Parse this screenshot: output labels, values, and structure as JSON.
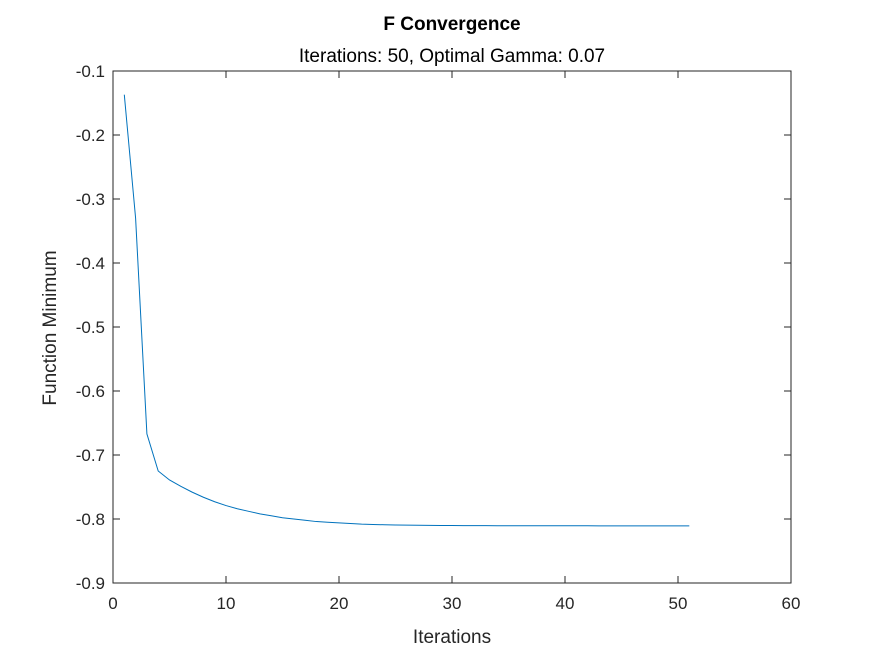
{
  "chart_data": {
    "type": "line",
    "title": "F Convergence",
    "subtitle": "Iterations: 50, Optimal Gamma: 0.07",
    "xlabel": "Iterations",
    "ylabel": "Function Minimum",
    "xlim": [
      0,
      60
    ],
    "ylim": [
      -0.9,
      -0.1
    ],
    "xticks": [
      0,
      10,
      20,
      30,
      40,
      50,
      60
    ],
    "yticks": [
      -0.9,
      -0.8,
      -0.7,
      -0.6,
      -0.5,
      -0.4,
      -0.3,
      -0.2,
      -0.1
    ],
    "xtick_labels": [
      "0",
      "10",
      "20",
      "30",
      "40",
      "50",
      "60"
    ],
    "ytick_labels": [
      "-0.9",
      "-0.8",
      "-0.7",
      "-0.6",
      "-0.5",
      "-0.4",
      "-0.3",
      "-0.2",
      "-0.1"
    ],
    "grid": false,
    "series_color": "#0072BD",
    "series": [
      {
        "x": [
          1,
          2,
          3,
          4,
          5,
          6,
          7,
          8,
          9,
          10,
          11,
          12,
          13,
          14,
          15,
          16,
          17,
          18,
          19,
          20,
          21,
          22,
          23,
          24,
          25,
          26,
          27,
          28,
          29,
          30,
          31,
          32,
          33,
          34,
          35,
          36,
          37,
          38,
          39,
          40,
          41,
          42,
          43,
          44,
          45,
          46,
          47,
          48,
          49,
          50,
          51
        ],
        "values": [
          -0.137,
          -0.33,
          -0.667,
          -0.725,
          -0.739,
          -0.749,
          -0.758,
          -0.766,
          -0.773,
          -0.779,
          -0.784,
          -0.788,
          -0.792,
          -0.795,
          -0.798,
          -0.8,
          -0.802,
          -0.804,
          -0.805,
          -0.806,
          -0.807,
          -0.808,
          -0.8085,
          -0.809,
          -0.8093,
          -0.8096,
          -0.8098,
          -0.81,
          -0.8101,
          -0.8102,
          -0.8103,
          -0.8104,
          -0.8104,
          -0.8105,
          -0.8105,
          -0.8105,
          -0.8106,
          -0.8106,
          -0.8106,
          -0.8106,
          -0.8106,
          -0.8106,
          -0.8107,
          -0.8107,
          -0.8107,
          -0.8107,
          -0.8107,
          -0.8107,
          -0.8107,
          -0.8107,
          -0.8107
        ]
      }
    ]
  }
}
